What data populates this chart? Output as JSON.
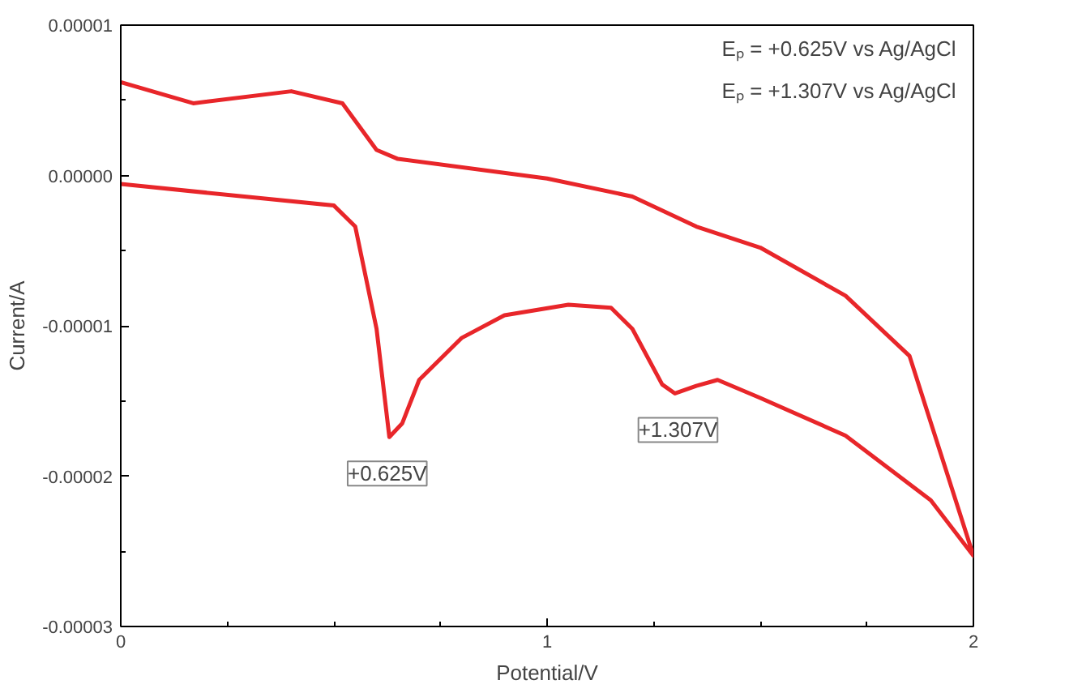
{
  "chart_data": {
    "type": "line",
    "xlabel": "Potential/V",
    "ylabel": "Current/A",
    "x": [
      0,
      0.5,
      0.55,
      0.6,
      0.63,
      0.66,
      0.7,
      0.8,
      0.9,
      1.05,
      1.15,
      1.2,
      1.27,
      1.3,
      1.35,
      1.4,
      1.5,
      1.7,
      1.9,
      2.0,
      1.85,
      1.7,
      1.5,
      1.35,
      1.2,
      1.0,
      0.65,
      0.6,
      0.52,
      0.4,
      0.17,
      0
    ],
    "series": [
      {
        "color": "#e8262a",
        "values": [
          -5.7e-07,
          -2e-06,
          -3.4e-06,
          -1.02e-05,
          -1.74e-05,
          -1.65e-05,
          -1.36e-05,
          -1.08e-05,
          -9.3e-06,
          -8.6e-06,
          -8.8e-06,
          -1.02e-05,
          -1.39e-05,
          -1.45e-05,
          -1.4e-05,
          -1.36e-05,
          -1.48e-05,
          -1.73e-05,
          -2.16e-05,
          -2.53e-05,
          -1.2e-05,
          -8e-06,
          -4.8e-06,
          -3.4e-06,
          -1.4e-06,
          -2e-07,
          1.1e-06,
          1.7e-06,
          4.8e-06,
          5.6e-06,
          4.8e-06,
          6.2e-06
        ]
      }
    ],
    "xlim": [
      0,
      2
    ],
    "ylim": [
      -3e-05,
      1e-05
    ],
    "xticks": [
      0,
      1,
      2
    ],
    "yticks": [
      {
        "value": -3e-05,
        "label": "-0.00003"
      },
      {
        "value": -2e-05,
        "label": "-0.00002"
      },
      {
        "value": -1e-05,
        "label": "-0.00001"
      },
      {
        "value": 0,
        "label": "0.00000"
      },
      {
        "value": 1e-05,
        "label": "0.00001"
      }
    ],
    "grid": false,
    "marker": "none",
    "line_style": "solid",
    "annotations": [
      "Eₚ = +0.625V vs Ag/AgCl",
      "Eₚ = +1.307V vs Ag/AgCl",
      {
        "text": "+0.625V",
        "x": 0.625,
        "y": -1.74e-05
      },
      {
        "text": "+1.307V",
        "x": 1.307,
        "y": -1.45e-05
      }
    ]
  }
}
